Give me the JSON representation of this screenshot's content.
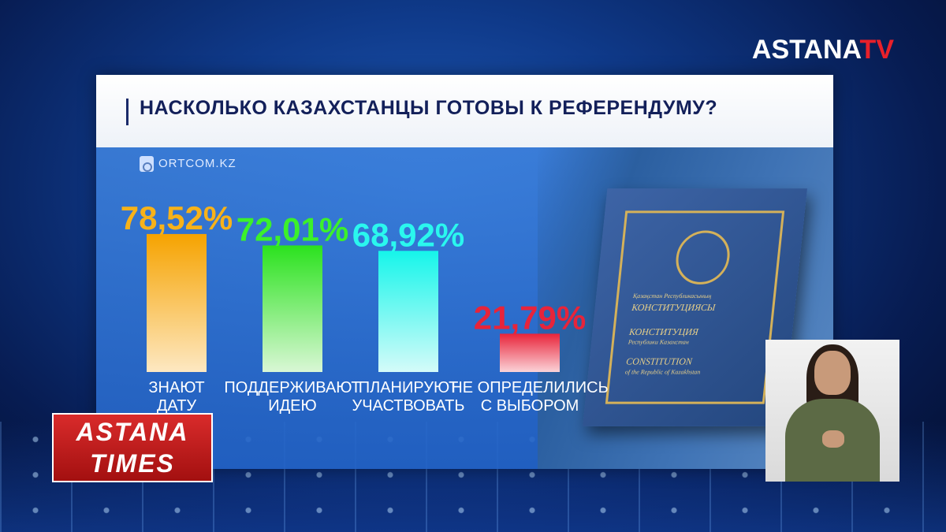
{
  "logo": {
    "main": "ASTANA",
    "accent": "TV"
  },
  "panel": {
    "title": "НАСКОЛЬКО КАЗАХСТАНЦЫ ГОТОВЫ К РЕФЕРЕНДУМУ?",
    "source": "ORTCOM.KZ"
  },
  "book": {
    "line1": "Қазақстан Республикасының",
    "line2": "КОНСТИТУЦИЯСЫ",
    "line3": "КОНСТИТУЦИЯ",
    "line4": "Республики Казахстан",
    "line5": "CONSTITUTION",
    "line6": "of the Republic of Kazakhstan"
  },
  "show": {
    "line1": "ASTANA",
    "line2": "TIMES"
  },
  "chart_data": {
    "type": "bar",
    "title": "НАСКОЛЬКО КАЗАХСТАНЦЫ ГОТОВЫ К РЕФЕРЕНДУМУ?",
    "categories": [
      [
        "ЗНАЮТ",
        "ДАТУ"
      ],
      [
        "ПОДДЕРЖИВАЮТ",
        "ИДЕЮ"
      ],
      [
        "ПЛАНИРУЮТ",
        "УЧАСТВОВАТЬ"
      ],
      [
        "НЕ ОПРЕДЕЛИЛИСЬ",
        "С ВЫБОРОМ"
      ]
    ],
    "values": [
      78.52,
      72.01,
      68.92,
      21.79
    ],
    "value_labels": [
      "78,52%",
      "72,01%",
      "68,92%",
      "21,79%"
    ],
    "bar_colors": [
      [
        "#f6a300",
        "#fde8c2"
      ],
      [
        "#2be21e",
        "#d9f7d5"
      ],
      [
        "#16f5ea",
        "#d4fbf9"
      ],
      [
        "#e8243a",
        "#fbd3d8"
      ]
    ],
    "label_colors": [
      "#f7b21a",
      "#3cf02b",
      "#2af7ee",
      "#e8243a"
    ],
    "ylim": [
      0,
      100
    ],
    "source": "ORTCOM.KZ"
  }
}
